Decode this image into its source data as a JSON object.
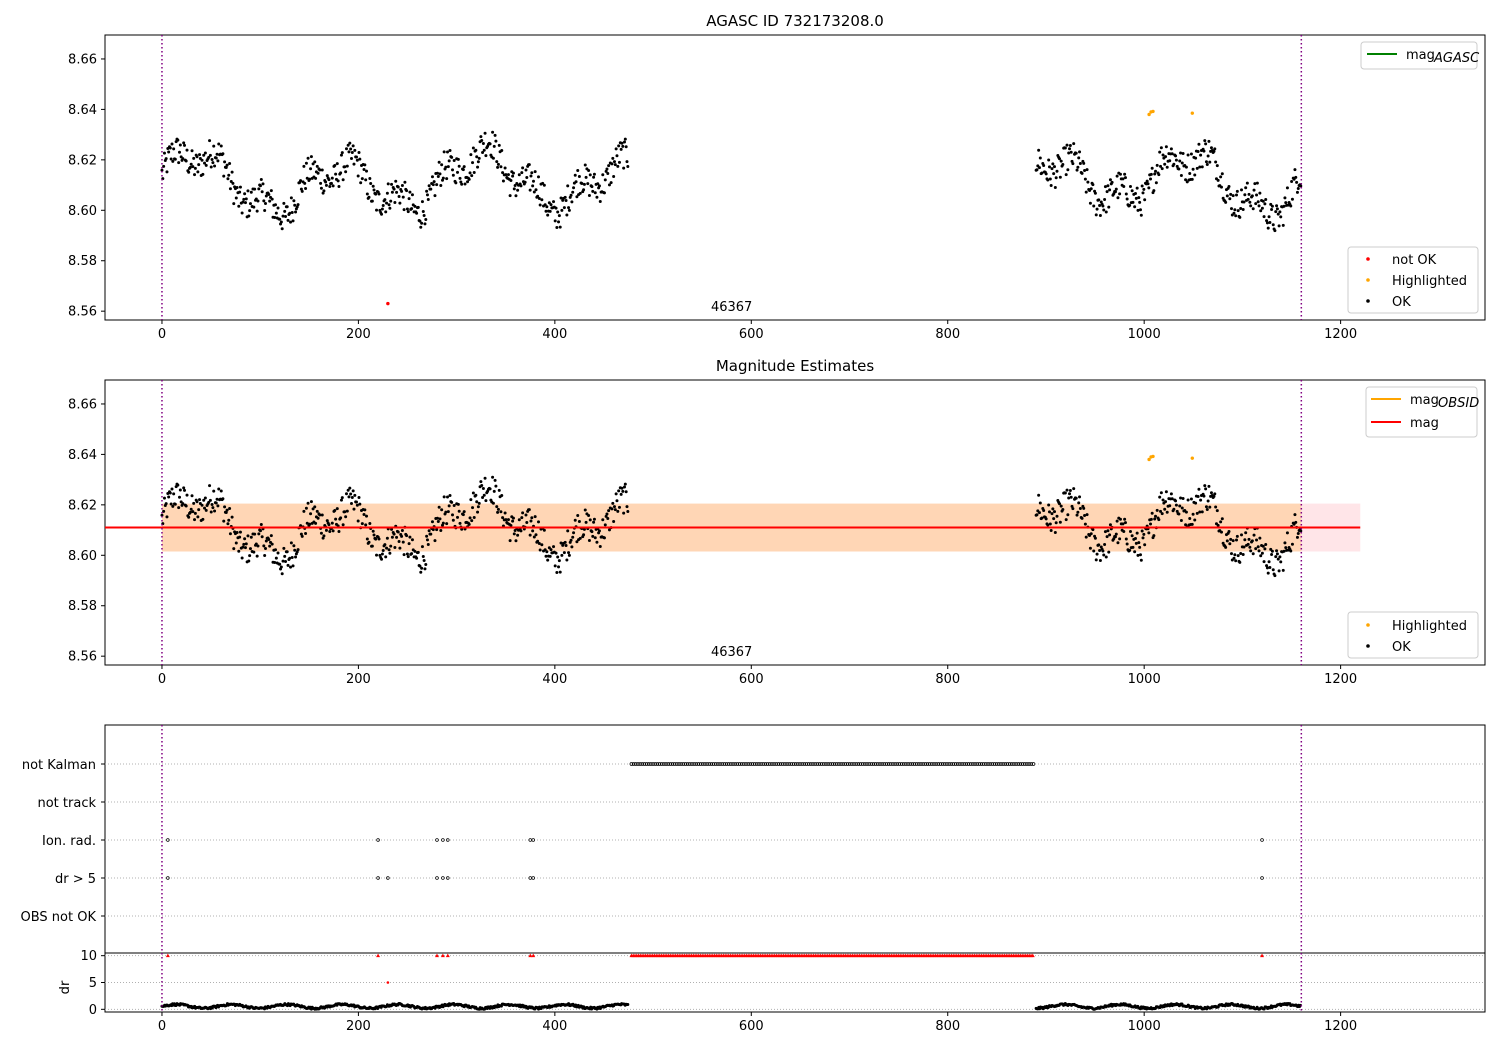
{
  "chart_data": [
    {
      "type": "scatter",
      "title": "AGASC ID 732173208.0",
      "xlabel": "",
      "ylabel": "",
      "xlim": [
        -58,
        1347
      ],
      "ylim": [
        8.5565,
        8.6695
      ],
      "x_ticks": [
        "0",
        "200",
        "400",
        "600",
        "800",
        "1000",
        "1200"
      ],
      "y_ticks": [
        "8.56",
        "8.58",
        "8.60",
        "8.62",
        "8.64",
        "8.66"
      ],
      "obsid_label": "46367",
      "obsid_boundaries": [
        0,
        1160
      ],
      "line_legend": [
        {
          "label_main": "mag",
          "label_sub": "AGASC",
          "color": "#008000"
        }
      ],
      "marker_legend": [
        {
          "label": "not OK",
          "color": "#ff0000"
        },
        {
          "label": "Highlighted",
          "color": "#ffa500"
        },
        {
          "label": "OK",
          "color": "#000000"
        }
      ],
      "series": [
        {
          "name": "OK",
          "color": "#000000",
          "segments": [
            [
              0,
              475
            ],
            [
              890,
              1160
            ]
          ]
        },
        {
          "name": "Highlighted",
          "color": "#ffa500",
          "points": [
            [
              1005,
              8.638
            ],
            [
              1007,
              8.639
            ],
            [
              1009,
              8.6392
            ],
            [
              1049,
              8.6385
            ]
          ]
        },
        {
          "name": "not OK",
          "color": "#ff0000",
          "points": [
            [
              230,
              8.563
            ]
          ]
        }
      ]
    },
    {
      "type": "scatter",
      "title": "Magnitude Estimates",
      "xlabel": "",
      "ylabel": "",
      "xlim": [
        -58,
        1347
      ],
      "ylim": [
        8.5565,
        8.6695
      ],
      "x_ticks": [
        "0",
        "200",
        "400",
        "600",
        "800",
        "1000",
        "1200"
      ],
      "y_ticks": [
        "8.56",
        "8.58",
        "8.60",
        "8.62",
        "8.64",
        "8.66"
      ],
      "obsid_label": "46367",
      "obsid_boundaries": [
        0,
        1160
      ],
      "mag_mean": 8.611,
      "band_obsid": {
        "x": [
          0,
          1160
        ],
        "y": [
          8.6015,
          8.6205
        ],
        "color": "#ffa500"
      },
      "band_agasc": {
        "x": [
          0,
          1220
        ],
        "y": [
          8.6015,
          8.6205
        ],
        "color": "#ff7b8a"
      },
      "line_legend": [
        {
          "label_main": "mag",
          "label_sub": "OBSID",
          "color": "#ffa500"
        },
        {
          "label_main": "mag",
          "label_sub": "",
          "color": "#ff0000"
        }
      ],
      "marker_legend": [
        {
          "label": "Highlighted",
          "color": "#ffa500"
        },
        {
          "label": "OK",
          "color": "#000000"
        }
      ],
      "series": [
        {
          "name": "OK",
          "color": "#000000",
          "segments": [
            [
              0,
              475
            ],
            [
              890,
              1160
            ]
          ]
        },
        {
          "name": "Highlighted",
          "color": "#ffa500",
          "points": [
            [
              1005,
              8.638
            ],
            [
              1007,
              8.639
            ],
            [
              1009,
              8.6392
            ],
            [
              1049,
              8.6385
            ]
          ]
        }
      ]
    },
    {
      "type": "scatter",
      "title": "",
      "xlim": [
        -58,
        1347
      ],
      "categories": [
        "not Kalman",
        "not track",
        "Ion. rad.",
        "dr > 5",
        "OBS not OK"
      ],
      "flags": {
        "not Kalman": [
          [
            478,
            888
          ]
        ],
        "not track": [],
        "Ion. rad.": [
          6,
          220,
          280,
          286,
          291,
          375,
          378,
          1120
        ],
        "dr > 5": [
          6,
          220,
          230,
          280,
          286,
          291,
          375,
          378,
          1120
        ],
        "OBS not OK": []
      },
      "obsid_boundaries": [
        0,
        1160
      ]
    },
    {
      "type": "scatter",
      "title": "",
      "ylabel": "dr",
      "xlim": [
        -58,
        1347
      ],
      "ylim": [
        -0.5,
        10.5
      ],
      "x_ticks": [
        "0",
        "200",
        "400",
        "600",
        "800",
        "1000",
        "1200"
      ],
      "y_ticks": [
        "0",
        "5",
        "10"
      ],
      "dr_clipped": {
        "value": 10,
        "color": "#ff0000",
        "points": [
          6,
          220,
          280,
          286,
          291,
          375,
          378,
          1120
        ],
        "ranges": [
          [
            478,
            888
          ]
        ]
      },
      "dr_mid": [
        [
          230,
          5
        ]
      ],
      "dr_series_segments": [
        [
          0,
          475
        ],
        [
          890,
          1160
        ]
      ],
      "obsid_boundaries": [
        0,
        1160
      ]
    }
  ]
}
